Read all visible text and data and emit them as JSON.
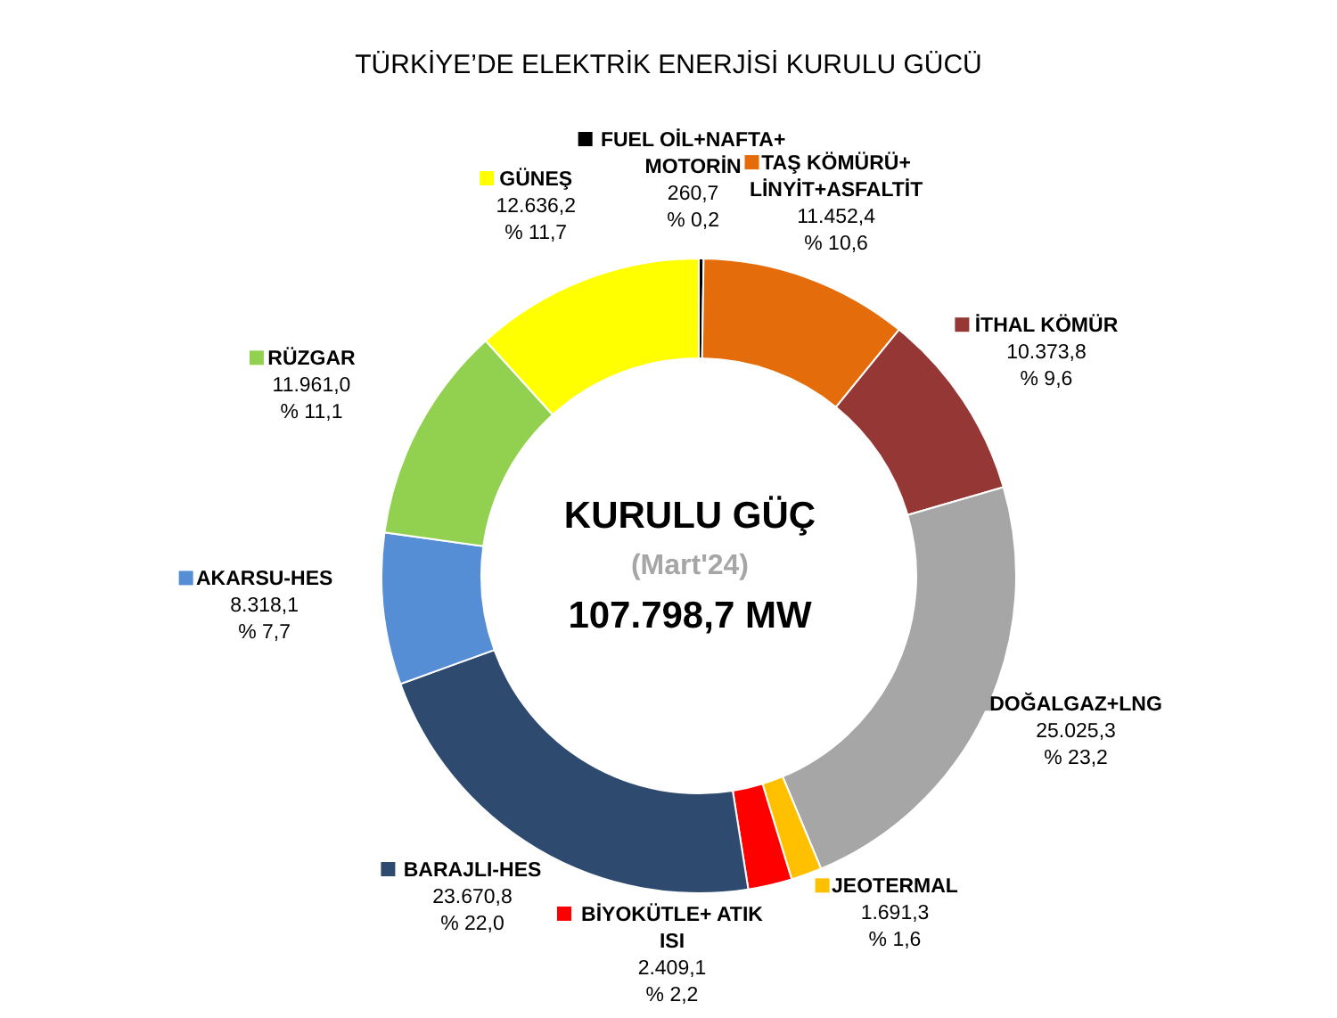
{
  "chart_data": {
    "type": "donut",
    "title": "TÜRKİYE’DE ELEKTRİK ENERJİSİ KURULU GÜCÜ",
    "categories": [
      "FUEL OİL+NAFTA+ MOTORİN",
      "TAŞ KÖMÜRÜ+ LİNYİT+ASFALTİT",
      "İTHAL KÖMÜR",
      "DOĞALGAZ+LNG",
      "JEOTERMAL",
      "BİYOKÜTLE+ ATIK ISI",
      "BARAJLI-HES",
      "AKARSU-HES",
      "RÜZGAR",
      "GÜNEŞ"
    ],
    "values": [
      260.7,
      11452.4,
      10373.8,
      25025.3,
      1691.3,
      2409.1,
      23670.8,
      8318.1,
      11961.0,
      12636.2
    ],
    "colors": [
      "#000000",
      "#e46c0a",
      "#953735",
      "#a6a6a6",
      "#ffc000",
      "#ff0000",
      "#2e4a6e",
      "#558ed5",
      "#92d050",
      "#ffff00"
    ],
    "value_labels": [
      "260,7\n% 0,2",
      "11.452,4\n% 10,6",
      "10.373,8\n% 9,6",
      "25.025,3\n% 23,2",
      "1.691,3\n% 1,6",
      "2.409,1\n% 2,2",
      "23.670,8\n% 22,0",
      "8.318,1\n% 7,7",
      "11.961,0\n% 11,1",
      "12.636,2\n% 11,7"
    ],
    "annotations": [
      "KURULU GÜÇ",
      "(Mart'24)",
      "107.798,7 MW"
    ],
    "legend": true
  }
}
